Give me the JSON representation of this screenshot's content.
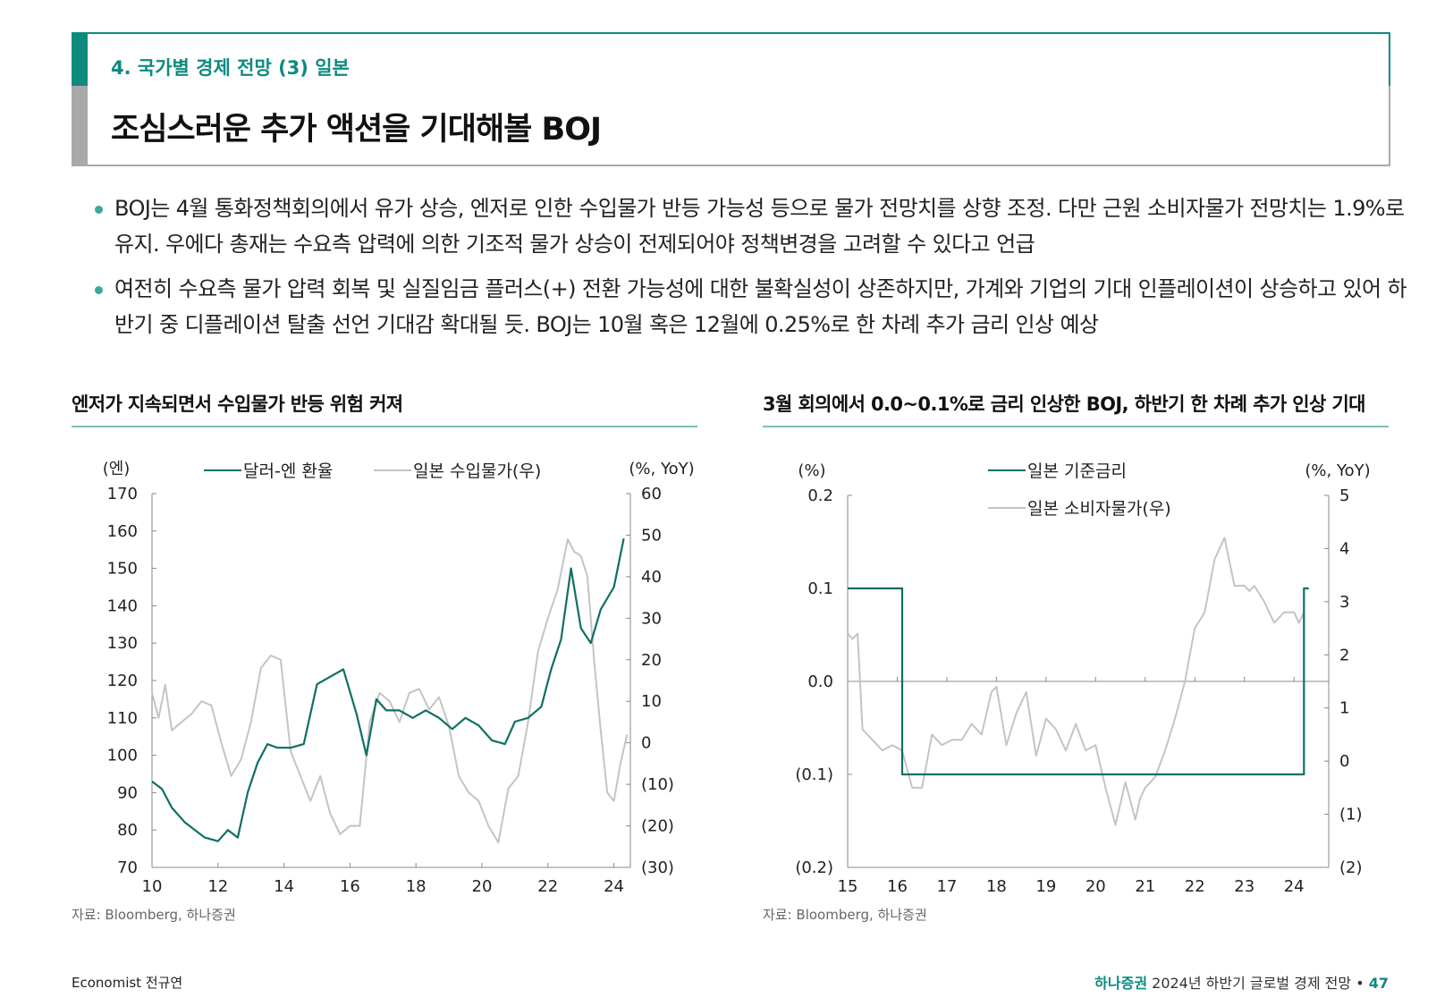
{
  "header": {
    "section": "4. 국가별 경제 전망 (3) 일본",
    "title": "조심스러운 추가 액션을 기대해볼 BOJ"
  },
  "bullets": [
    "BOJ는 4월 통화정책회의에서 유가 상승, 엔저로 인한 수입물가 반등 가능성 등으로 물가 전망치를 상향 조정. 다만 근원 소비자물가 전망치는 1.9%로 유지. 우에다 총재는 수요측 압력에 의한 기조적 물가 상승이 전제되어야 정책변경을 고려할 수 있다고 언급",
    "여전히 수요측 물가 압력 회복 및 실질임금 플러스(+) 전환 가능성에 대한 불확실성이 상존하지만, 가계와 기업의 기대 인플레이션이 상승하고 있어 하반기 중 디플레이션 탈출 선언 기대감 확대될 듯. BOJ는 10월 혹은 12월에 0.25%로 한 차례 추가 금리 인상 예상"
  ],
  "chart_data": [
    {
      "type": "line",
      "title": "엔저가 지속되면서 수입물가 반등 위험 커져",
      "y_left_unit": "(엔)",
      "y_right_unit": "(%, YoY)",
      "ylim_left": [
        70,
        170
      ],
      "ylim_right": [
        -30,
        60
      ],
      "xlim": [
        10,
        24.5
      ],
      "x_ticks": [
        "10",
        "12",
        "14",
        "16",
        "18",
        "20",
        "22",
        "24"
      ],
      "y_left_ticks": [
        "170",
        "160",
        "150",
        "140",
        "130",
        "120",
        "110",
        "100",
        "90",
        "80",
        "70"
      ],
      "y_right_ticks": [
        "60",
        "50",
        "40",
        "30",
        "20",
        "10",
        "0",
        "(10)",
        "(20)",
        "(30)"
      ],
      "series": [
        {
          "name": "달러-엔 환율",
          "axis": "left",
          "color": "#0e6f64",
          "x": [
            10.0,
            10.3,
            10.6,
            11.0,
            11.3,
            11.6,
            12.0,
            12.3,
            12.6,
            12.9,
            13.2,
            13.5,
            13.8,
            14.2,
            14.6,
            15.0,
            15.4,
            15.8,
            16.2,
            16.5,
            16.8,
            17.1,
            17.5,
            17.9,
            18.3,
            18.7,
            19.1,
            19.5,
            19.9,
            20.3,
            20.7,
            21.0,
            21.4,
            21.8,
            22.1,
            22.4,
            22.7,
            23.0,
            23.3,
            23.6,
            24.0,
            24.3
          ],
          "y": [
            93,
            91,
            86,
            82,
            80,
            78,
            77,
            80,
            78,
            90,
            98,
            103,
            102,
            102,
            103,
            119,
            121,
            123,
            111,
            100,
            115,
            112,
            112,
            110,
            112,
            110,
            107,
            110,
            108,
            104,
            103,
            109,
            110,
            113,
            123,
            131,
            150,
            134,
            130,
            139,
            145,
            158
          ]
        },
        {
          "name": "일본 수입물가(우)",
          "axis": "right",
          "color": "#c4c4c4",
          "x": [
            10.0,
            10.2,
            10.4,
            10.6,
            10.9,
            11.2,
            11.5,
            11.8,
            12.1,
            12.4,
            12.7,
            13.0,
            13.3,
            13.6,
            13.9,
            14.2,
            14.5,
            14.8,
            15.1,
            15.4,
            15.7,
            16.0,
            16.3,
            16.6,
            16.9,
            17.2,
            17.5,
            17.8,
            18.1,
            18.4,
            18.7,
            19.0,
            19.3,
            19.6,
            19.9,
            20.2,
            20.5,
            20.8,
            21.1,
            21.4,
            21.7,
            22.0,
            22.3,
            22.6,
            22.8,
            23.0,
            23.2,
            23.4,
            23.6,
            23.8,
            24.0,
            24.2,
            24.4
          ],
          "y": [
            12,
            6,
            14,
            3,
            5,
            7,
            10,
            9,
            0,
            -8,
            -4,
            5,
            18,
            21,
            20,
            -2,
            -8,
            -14,
            -8,
            -17,
            -22,
            -20,
            -20,
            5,
            12,
            10,
            5,
            12,
            13,
            8,
            11,
            4,
            -8,
            -12,
            -14,
            -20,
            -24,
            -11,
            -8,
            5,
            22,
            30,
            37,
            49,
            46,
            45,
            40,
            20,
            3,
            -12,
            -14,
            -5,
            2
          ]
        }
      ]
    },
    {
      "type": "line",
      "title": "3월 회의에서 0.0~0.1%로 금리 인상한 BOJ, 하반기 한 차례 추가 인상 기대",
      "y_left_unit": "(%)",
      "y_right_unit": "(%, YoY)",
      "ylim_left": [
        -0.2,
        0.2
      ],
      "ylim_right": [
        -2,
        5
      ],
      "xlim": [
        15,
        24.7
      ],
      "x_ticks": [
        "15",
        "16",
        "17",
        "18",
        "19",
        "20",
        "21",
        "22",
        "23",
        "24"
      ],
      "y_left_ticks": [
        "0.2",
        "0.1",
        "0.0",
        "(0.1)",
        "(0.2)"
      ],
      "y_right_ticks": [
        "5",
        "4",
        "3",
        "2",
        "1",
        "0",
        "(1)",
        "(2)"
      ],
      "series": [
        {
          "name": "일본 기준금리",
          "axis": "left",
          "color": "#0e6f64",
          "step": true,
          "x": [
            15.0,
            16.1,
            16.1,
            24.2,
            24.2,
            24.3
          ],
          "y": [
            0.1,
            0.1,
            -0.1,
            -0.1,
            0.1,
            0.1
          ]
        },
        {
          "name": "일본 소비자물가(우)",
          "axis": "right",
          "color": "#c4c4c4",
          "x": [
            15.0,
            15.1,
            15.2,
            15.3,
            15.5,
            15.7,
            15.9,
            16.1,
            16.3,
            16.5,
            16.7,
            16.9,
            17.1,
            17.3,
            17.5,
            17.7,
            17.9,
            18.0,
            18.2,
            18.4,
            18.6,
            18.8,
            19.0,
            19.2,
            19.4,
            19.6,
            19.8,
            20.0,
            20.2,
            20.4,
            20.6,
            20.8,
            20.9,
            21.0,
            21.2,
            21.4,
            21.6,
            21.8,
            22.0,
            22.2,
            22.4,
            22.6,
            22.8,
            23.0,
            23.1,
            23.2,
            23.4,
            23.6,
            23.8,
            24.0,
            24.1,
            24.2
          ],
          "y": [
            2.4,
            2.3,
            2.4,
            0.6,
            0.4,
            0.2,
            0.3,
            0.2,
            -0.5,
            -0.5,
            0.5,
            0.3,
            0.4,
            0.4,
            0.7,
            0.5,
            1.3,
            1.4,
            0.3,
            0.9,
            1.3,
            0.1,
            0.8,
            0.6,
            0.2,
            0.7,
            0.2,
            0.3,
            -0.5,
            -1.2,
            -0.4,
            -1.1,
            -0.7,
            -0.5,
            -0.3,
            0.2,
            0.8,
            1.5,
            2.5,
            2.8,
            3.8,
            4.2,
            3.3,
            3.3,
            3.2,
            3.3,
            3.0,
            2.6,
            2.8,
            2.8,
            2.6,
            2.8
          ]
        }
      ]
    }
  ],
  "sources": [
    "자료: Bloomberg, 하나증권",
    "자료: Bloomberg, 하나증권"
  ],
  "footer": {
    "author": "Economist 전규연",
    "brand": "하나증권",
    "report": " 2024년 하반기 글로벌 경제 전망",
    "sep": " • ",
    "page": "47"
  }
}
